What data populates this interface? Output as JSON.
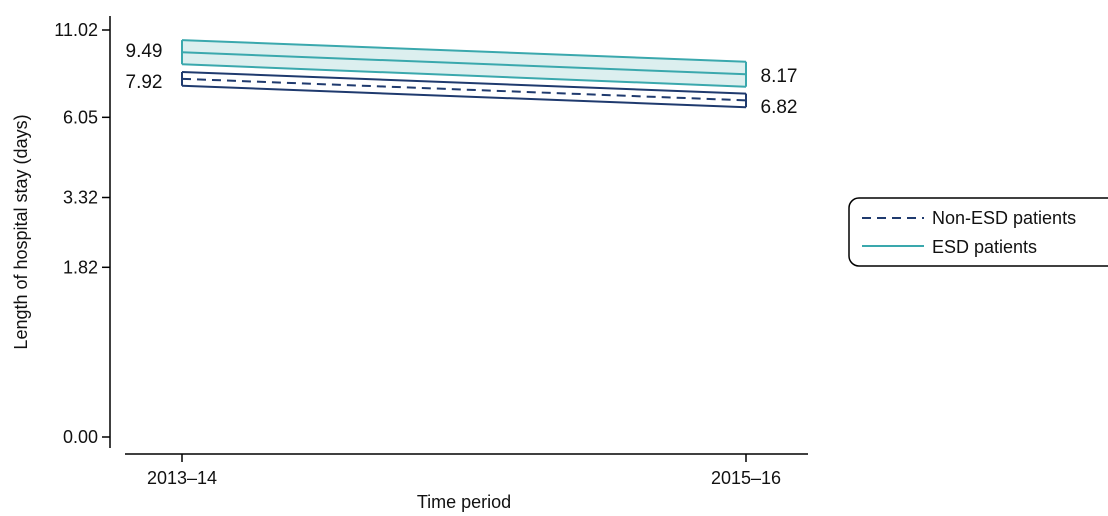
{
  "chart_data": {
    "type": "line",
    "xlabel": "Time period",
    "ylabel": "Length of hospital stay (days)",
    "categories": [
      "2013–14",
      "2015–16"
    ],
    "yticks": [
      0.0,
      1.82,
      3.32,
      6.05,
      11.02
    ],
    "ytick_labels": [
      "0.00",
      "1.82",
      "3.32",
      "6.05",
      "11.02"
    ],
    "yscale": "log",
    "series": [
      {
        "name": "Non-ESD patients",
        "style": "dashed",
        "color": "#1f3a6e",
        "values": [
          7.92,
          6.82
        ],
        "lower": [
          7.55,
          6.5
        ],
        "upper": [
          8.3,
          7.15
        ]
      },
      {
        "name": "ESD patients",
        "style": "solid",
        "color": "#3aa8ad",
        "fill": "#dcefef",
        "values": [
          9.49,
          8.17
        ],
        "lower": [
          8.75,
          7.5
        ],
        "upper": [
          10.3,
          8.9
        ]
      }
    ],
    "data_labels": {
      "left": [
        "9.49",
        "7.92"
      ],
      "right": [
        "8.17",
        "6.82"
      ]
    },
    "legend": {
      "placement": "right",
      "entries": [
        "Non-ESD patients",
        "ESD patients"
      ]
    },
    "grid": false
  }
}
